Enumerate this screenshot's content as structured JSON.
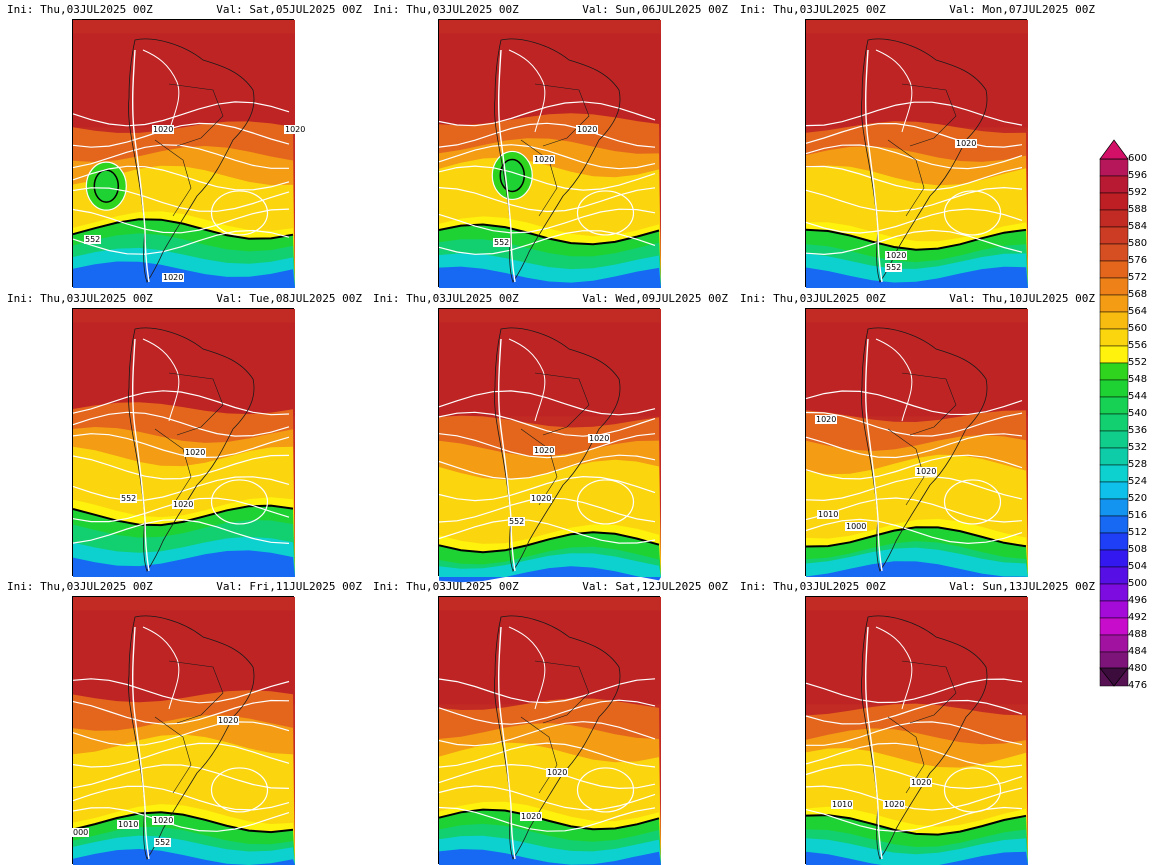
{
  "panels": [
    {
      "ini": "Ini: Thu,03JUL2025 00Z",
      "val": "Val: Sat,05JUL2025 00Z",
      "contour_labels": [
        "1020",
        "1020",
        "1020",
        "552"
      ]
    },
    {
      "ini": "Ini: Thu,03JUL2025 00Z",
      "val": "Val: Sun,06JUL2025 00Z",
      "contour_labels": [
        "1020",
        "1020",
        "552"
      ]
    },
    {
      "ini": "Ini: Thu,03JUL2025 00Z",
      "val": "Val: Mon,07JUL2025 00Z",
      "contour_labels": [
        "1020",
        "1020",
        "552"
      ]
    },
    {
      "ini": "Ini: Thu,03JUL2025 00Z",
      "val": "Val: Tue,08JUL2025 00Z",
      "contour_labels": [
        "1020",
        "1020",
        "552"
      ]
    },
    {
      "ini": "Ini: Thu,03JUL2025 00Z",
      "val": "Val: Wed,09JUL2025 00Z",
      "contour_labels": [
        "1020",
        "1020",
        "1020",
        "552"
      ]
    },
    {
      "ini": "Ini: Thu,03JUL2025 00Z",
      "val": "Val: Thu,10JUL2025 00Z",
      "contour_labels": [
        "1020",
        "1020",
        "1010",
        "1000"
      ]
    },
    {
      "ini": "Ini: Thu,03JUL2025 00Z",
      "val": "Val: Fri,11JUL2025 00Z",
      "contour_labels": [
        "1020",
        "1020",
        "552",
        "1010",
        "000"
      ]
    },
    {
      "ini": "Ini: Thu,03JUL2025 00Z",
      "val": "Val: Sat,12JUL2025 00Z",
      "contour_labels": [
        "1020",
        "1020"
      ]
    },
    {
      "ini": "Ini: Thu,03JUL2025 00Z",
      "val": "Val: Sun,13JUL2025 00Z",
      "contour_labels": [
        "1020",
        "1020",
        "1010"
      ]
    }
  ],
  "colorbar": {
    "levels": [
      "600",
      "596",
      "592",
      "588",
      "584",
      "580",
      "576",
      "572",
      "568",
      "564",
      "560",
      "556",
      "552",
      "548",
      "544",
      "540",
      "536",
      "532",
      "528",
      "524",
      "520",
      "516",
      "512",
      "508",
      "504",
      "500",
      "496",
      "492",
      "488",
      "484",
      "480",
      "476"
    ],
    "colors": [
      "#b5175a",
      "#b81a33",
      "#be1f24",
      "#c22a24",
      "#cc3c24",
      "#d64f22",
      "#e3661c",
      "#ee8218",
      "#f39c14",
      "#f8bb10",
      "#fbd60e",
      "#fff20c",
      "#2fd41e",
      "#1fd234",
      "#16d153",
      "#12cf70",
      "#10cd8c",
      "#0fcca8",
      "#0cd1ce",
      "#0ec0ea",
      "#1294f0",
      "#1768f3",
      "#1e3ff5",
      "#3418f0",
      "#5610e6",
      "#7c0ce0",
      "#a40bd8",
      "#c80ccc",
      "#a0129f",
      "#7c1479",
      "#561253"
    ],
    "cap_top_color": "#d21068",
    "cap_bottom_color": "#3c0c3c"
  }
}
